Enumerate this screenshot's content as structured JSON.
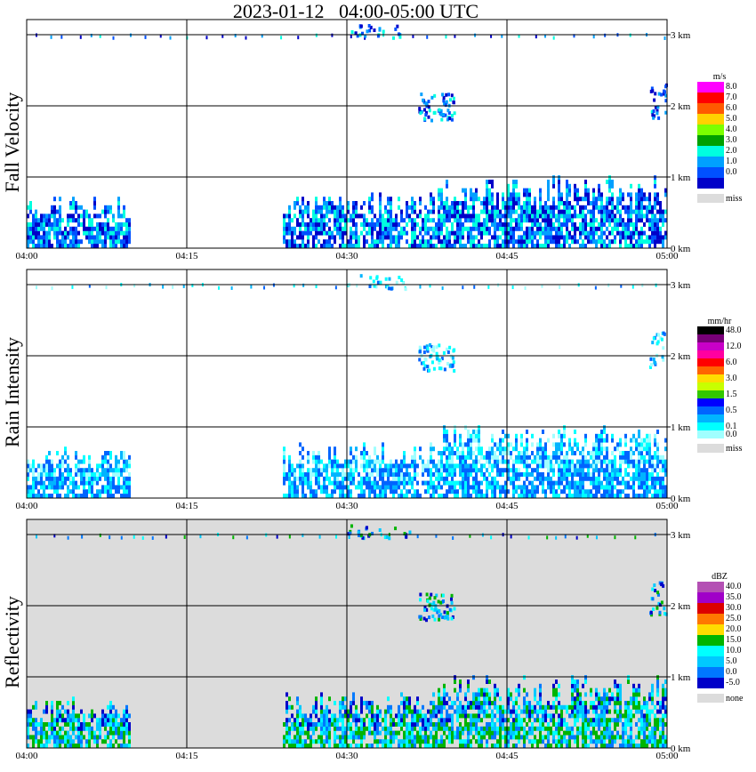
{
  "title": "2023-01-12   04:00-05:00 UTC",
  "chart_data": [
    {
      "type": "heatmap",
      "ylabel": "Fall Velocity",
      "x_ticks": [
        "04:00",
        "04:15",
        "04:30",
        "04:45",
        "05:00"
      ],
      "y_ticks": [
        "0 km",
        "1 km",
        "2 km",
        "3 km"
      ],
      "xlim": [
        "04:00",
        "05:00"
      ],
      "ylim_km": [
        0,
        3.2
      ],
      "background": "#ffffff",
      "colorbar_unit": "m/s",
      "colorbar": [
        {
          "label": "8.0",
          "color": "#ff00ff"
        },
        {
          "label": "7.0",
          "color": "#ff0000"
        },
        {
          "label": "6.0",
          "color": "#ff5a00"
        },
        {
          "label": "5.0",
          "color": "#ffd200"
        },
        {
          "label": "4.0",
          "color": "#7cff00"
        },
        {
          "label": "3.0",
          "color": "#00a000"
        },
        {
          "label": "2.0",
          "color": "#00ffe0"
        },
        {
          "label": "1.0",
          "color": "#00a0ff"
        },
        {
          "label": "0.0",
          "color": "#0050ff"
        },
        {
          "label": "",
          "color": "#0000c8"
        }
      ],
      "missing_label": "miss",
      "missing_color": "#dcdcdc"
    },
    {
      "type": "heatmap",
      "ylabel": "Rain Intensity",
      "x_ticks": [
        "04:00",
        "04:15",
        "04:30",
        "04:45",
        "05:00"
      ],
      "y_ticks": [
        "0 km",
        "1 km",
        "2 km",
        "3 km"
      ],
      "xlim": [
        "04:00",
        "05:00"
      ],
      "ylim_km": [
        0,
        3.2
      ],
      "background": "#ffffff",
      "colorbar_unit": "mm/hr",
      "colorbar": [
        {
          "label": "48.0",
          "color": "#000000"
        },
        {
          "label": "",
          "color": "#780078"
        },
        {
          "label": "12.0",
          "color": "#c800c8"
        },
        {
          "label": "",
          "color": "#ff00a0"
        },
        {
          "label": "6.0",
          "color": "#ff0000"
        },
        {
          "label": "",
          "color": "#ff6400"
        },
        {
          "label": "3.0",
          "color": "#ffdc00"
        },
        {
          "label": "",
          "color": "#c8ff00"
        },
        {
          "label": "1.5",
          "color": "#32c800"
        },
        {
          "label": "",
          "color": "#0000ff"
        },
        {
          "label": "0.5",
          "color": "#0064ff"
        },
        {
          "label": "",
          "color": "#00b4ff"
        },
        {
          "label": "0.1",
          "color": "#00ffff"
        },
        {
          "label": "0.0",
          "color": "#a0ffff"
        }
      ],
      "missing_label": "miss",
      "missing_color": "#dcdcdc"
    },
    {
      "type": "heatmap",
      "ylabel": "Reflectivity",
      "x_ticks": [
        "04:00",
        "04:15",
        "04:30",
        "04:45",
        "05:00"
      ],
      "y_ticks": [
        "0 km",
        "1 km",
        "2 km",
        "3 km"
      ],
      "xlim": [
        "04:00",
        "05:00"
      ],
      "ylim_km": [
        0,
        3.2
      ],
      "background": "#dcdcdc",
      "colorbar_unit": "dBZ",
      "colorbar": [
        {
          "label": "40.0",
          "color": "#b450b4"
        },
        {
          "label": "35.0",
          "color": "#a000c8"
        },
        {
          "label": "30.0",
          "color": "#dc0000"
        },
        {
          "label": "25.0",
          "color": "#ff7800"
        },
        {
          "label": "20.0",
          "color": "#ffdc00"
        },
        {
          "label": "15.0",
          "color": "#00b400"
        },
        {
          "label": "10.0",
          "color": "#00ffff"
        },
        {
          "label": "5.0",
          "color": "#00c8ff"
        },
        {
          "label": "0.0",
          "color": "#0078ff"
        },
        {
          "label": "-5.0",
          "color": "#0000c8"
        }
      ],
      "missing_label": "none",
      "missing_color": "#dcdcdc"
    }
  ]
}
